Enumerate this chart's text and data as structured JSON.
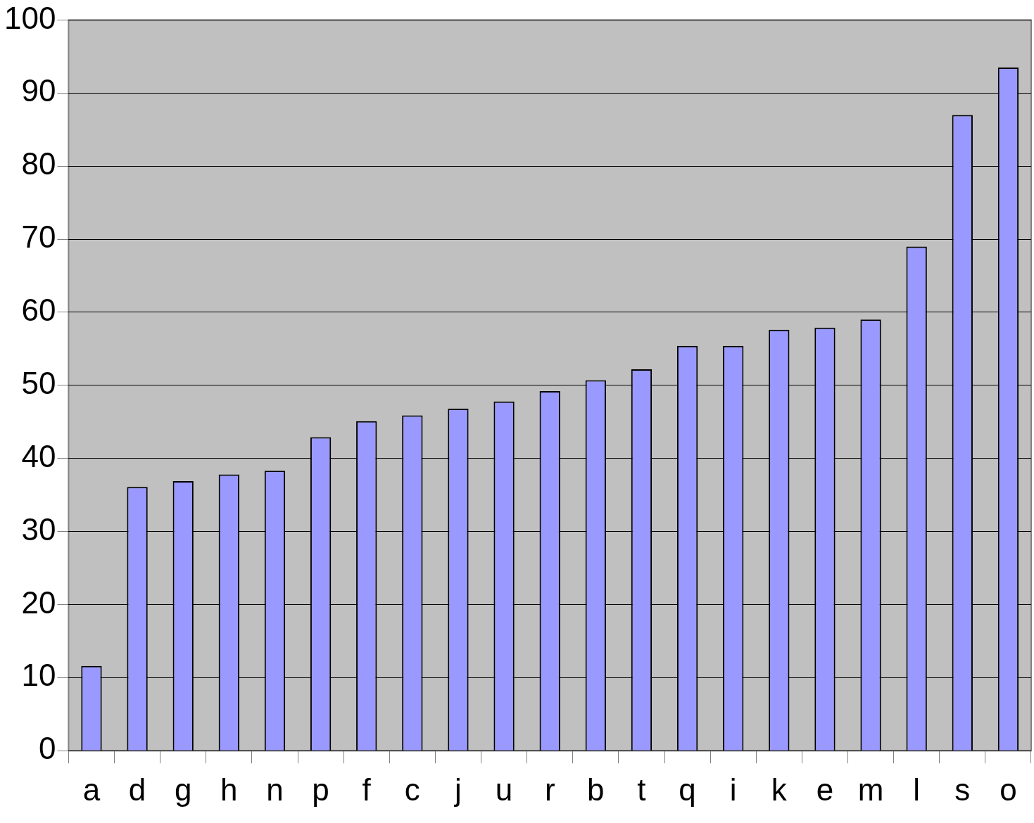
{
  "chart_data": {
    "type": "bar",
    "categories": [
      "a",
      "d",
      "g",
      "h",
      "n",
      "p",
      "f",
      "c",
      "j",
      "u",
      "r",
      "b",
      "t",
      "q",
      "i",
      "k",
      "e",
      "m",
      "l",
      "s",
      "o"
    ],
    "values": [
      11.6,
      36.1,
      36.9,
      37.8,
      38.3,
      42.9,
      45.1,
      45.9,
      46.8,
      47.8,
      49.2,
      50.7,
      52.2,
      55.4,
      55.4,
      57.6,
      57.9,
      59.0,
      69.0,
      87.0,
      93.5
    ],
    "color": "#9999ff",
    "ylim": [
      0,
      100
    ],
    "yticks": [
      0,
      10,
      20,
      30,
      40,
      50,
      60,
      70,
      80,
      90,
      100
    ],
    "grid": "y",
    "legend": false
  }
}
